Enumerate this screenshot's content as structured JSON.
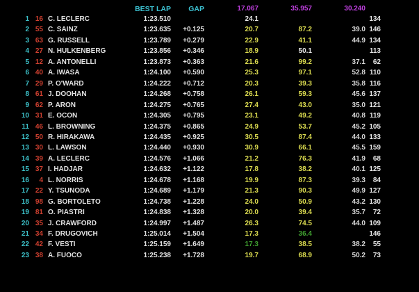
{
  "header": {
    "best_lap": "BEST LAP",
    "gap": "GAP",
    "s1_best": "17.067",
    "s2_best": "35.957",
    "s3_best": "30.240"
  },
  "colors": {
    "position": "#3cc0c8",
    "car_number": "#d04030",
    "header": "#3cc0d0",
    "sector_best": "#c040e0",
    "personal_best": "#dcdc50",
    "overall_best": "#40a030",
    "normal": "#e6e6e6"
  },
  "rows": [
    {
      "pos": "1",
      "num": "16",
      "name": "C. LECLERC",
      "best": "1:23.510",
      "gap": "",
      "s1": "24.1",
      "s1c": "w",
      "s2": "",
      "s2c": "y",
      "s3": "",
      "laps": "134"
    },
    {
      "pos": "2",
      "num": "55",
      "name": "C. SAINZ",
      "best": "1:23.635",
      "gap": "+0.125",
      "s1": "20.7",
      "s1c": "y",
      "s2": "87.2",
      "s2c": "y",
      "s3": "39.0",
      "laps": "146"
    },
    {
      "pos": "3",
      "num": "63",
      "name": "G. RUSSELL",
      "best": "1:23.789",
      "gap": "+0.279",
      "s1": "22.9",
      "s1c": "y",
      "s2": "41.1",
      "s2c": "y",
      "s3": "44.9",
      "laps": "134"
    },
    {
      "pos": "4",
      "num": "27",
      "name": "N. HULKENBERG",
      "best": "1:23.856",
      "gap": "+0.346",
      "s1": "18.9",
      "s1c": "y",
      "s2": "50.1",
      "s2c": "w",
      "s3": "",
      "laps": "113"
    },
    {
      "pos": "5",
      "num": "12",
      "name": "A. ANTONELLI",
      "best": "1:23.873",
      "gap": "+0.363",
      "s1": "21.6",
      "s1c": "y",
      "s2": "99.2",
      "s2c": "y",
      "s3": "37.1",
      "laps": "62"
    },
    {
      "pos": "6",
      "num": "40",
      "name": "A. IWASA",
      "best": "1:24.100",
      "gap": "+0.590",
      "s1": "25.3",
      "s1c": "y",
      "s2": "97.1",
      "s2c": "y",
      "s3": "52.8",
      "laps": "110"
    },
    {
      "pos": "7",
      "num": "29",
      "name": "P. O'WARD",
      "best": "1:24.222",
      "gap": "+0.712",
      "s1": "20.3",
      "s1c": "y",
      "s2": "39.3",
      "s2c": "y",
      "s3": "35.8",
      "laps": "116"
    },
    {
      "pos": "8",
      "num": "61",
      "name": "J. DOOHAN",
      "best": "1:24.268",
      "gap": "+0.758",
      "s1": "26.1",
      "s1c": "y",
      "s2": "59.3",
      "s2c": "y",
      "s3": "45.6",
      "laps": "137"
    },
    {
      "pos": "9",
      "num": "62",
      "name": "P. ARON",
      "best": "1:24.275",
      "gap": "+0.765",
      "s1": "27.4",
      "s1c": "y",
      "s2": "43.0",
      "s2c": "y",
      "s3": "35.0",
      "laps": "121"
    },
    {
      "pos": "10",
      "num": "31",
      "name": "E. OCON",
      "best": "1:24.305",
      "gap": "+0.795",
      "s1": "23.1",
      "s1c": "y",
      "s2": "49.2",
      "s2c": "y",
      "s3": "40.8",
      "laps": "119"
    },
    {
      "pos": "11",
      "num": "46",
      "name": "L. BROWNING",
      "best": "1:24.375",
      "gap": "+0.865",
      "s1": "24.9",
      "s1c": "y",
      "s2": "53.7",
      "s2c": "y",
      "s3": "45.2",
      "laps": "105"
    },
    {
      "pos": "12",
      "num": "50",
      "name": "R. HIRAKAWA",
      "best": "1:24.435",
      "gap": "+0.925",
      "s1": "30.5",
      "s1c": "y",
      "s2": "87.4",
      "s2c": "y",
      "s3": "44.0",
      "laps": "133"
    },
    {
      "pos": "13",
      "num": "30",
      "name": "L. LAWSON",
      "best": "1:24.440",
      "gap": "+0.930",
      "s1": "30.9",
      "s1c": "y",
      "s2": "66.1",
      "s2c": "y",
      "s3": "45.5",
      "laps": "159"
    },
    {
      "pos": "14",
      "num": "39",
      "name": "A. LECLERC",
      "best": "1:24.576",
      "gap": "+1.066",
      "s1": "21.2",
      "s1c": "y",
      "s2": "76.3",
      "s2c": "y",
      "s3": "41.9",
      "laps": "68"
    },
    {
      "pos": "15",
      "num": "37",
      "name": "I. HADJAR",
      "best": "1:24.632",
      "gap": "+1.122",
      "s1": "17.8",
      "s1c": "y",
      "s2": "38.2",
      "s2c": "y",
      "s3": "40.1",
      "laps": "125"
    },
    {
      "pos": "16",
      "num": "4",
      "name": "L. NORRIS",
      "best": "1:24.678",
      "gap": "+1.168",
      "s1": "19.9",
      "s1c": "y",
      "s2": "87.3",
      "s2c": "y",
      "s3": "39.3",
      "laps": "84"
    },
    {
      "pos": "17",
      "num": "22",
      "name": "Y. TSUNODA",
      "best": "1:24.689",
      "gap": "+1.179",
      "s1": "21.3",
      "s1c": "y",
      "s2": "90.3",
      "s2c": "y",
      "s3": "49.9",
      "laps": "127"
    },
    {
      "pos": "18",
      "num": "98",
      "name": "G. BORTOLETO",
      "best": "1:24.738",
      "gap": "+1.228",
      "s1": "24.0",
      "s1c": "y",
      "s2": "50.9",
      "s2c": "y",
      "s3": "43.2",
      "laps": "130"
    },
    {
      "pos": "19",
      "num": "81",
      "name": "O. PIASTRI",
      "best": "1:24.838",
      "gap": "+1.328",
      "s1": "20.0",
      "s1c": "y",
      "s2": "39.4",
      "s2c": "y",
      "s3": "35.7",
      "laps": "72"
    },
    {
      "pos": "20",
      "num": "35",
      "name": "J. CRAWFORD",
      "best": "1:24.997",
      "gap": "+1.487",
      "s1": "26.3",
      "s1c": "y",
      "s2": "74.5",
      "s2c": "y",
      "s3": "44.0",
      "laps": "109"
    },
    {
      "pos": "21",
      "num": "34",
      "name": "F. DRUGOVICH",
      "best": "1:25.014",
      "gap": "+1.504",
      "s1": "17.3",
      "s1c": "y",
      "s2": "36.4",
      "s2c": "g",
      "s3": "",
      "laps": "146"
    },
    {
      "pos": "22",
      "num": "42",
      "name": "F. VESTI",
      "best": "1:25.159",
      "gap": "+1.649",
      "s1": "17.3",
      "s1c": "g",
      "s2": "38.5",
      "s2c": "y",
      "s3": "38.2",
      "laps": "55"
    },
    {
      "pos": "23",
      "num": "38",
      "name": "A. FUOCO",
      "best": "1:25.238",
      "gap": "+1.728",
      "s1": "19.7",
      "s1c": "y",
      "s2": "68.9",
      "s2c": "y",
      "s3": "50.2",
      "laps": "73"
    }
  ]
}
